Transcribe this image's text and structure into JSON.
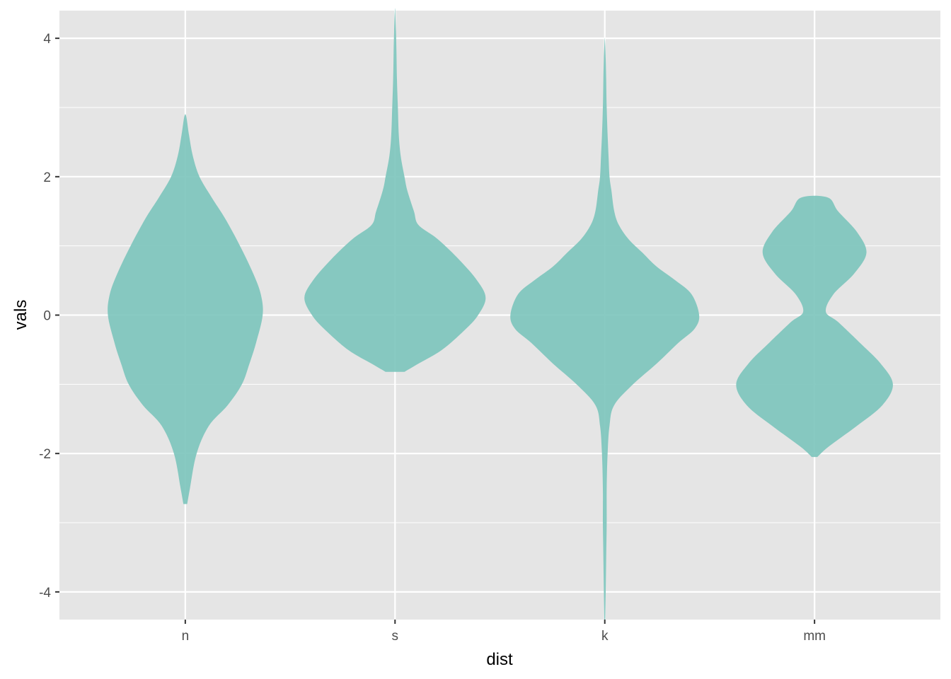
{
  "chart_data": {
    "type": "violin",
    "title": "",
    "xlabel": "dist",
    "ylabel": "vals",
    "categories": [
      "n",
      "s",
      "k",
      "mm"
    ],
    "ylim": [
      -4.4,
      4.4
    ],
    "yticks": [
      -4,
      -2,
      0,
      2,
      4
    ],
    "grid": true,
    "fill_color": "#7ec6bd",
    "panel_color": "#e5e5e5",
    "grid_color": "#ffffff",
    "violins": [
      {
        "category": "n",
        "y_range": [
          -2.73,
          2.87
        ],
        "profile": [
          [
            -2.73,
            0.02
          ],
          [
            -2.5,
            0.05
          ],
          [
            -2.0,
            0.12
          ],
          [
            -1.6,
            0.25
          ],
          [
            -1.3,
            0.45
          ],
          [
            -1.0,
            0.6
          ],
          [
            -0.7,
            0.68
          ],
          [
            -0.4,
            0.75
          ],
          [
            0.0,
            0.82
          ],
          [
            0.3,
            0.8
          ],
          [
            0.6,
            0.72
          ],
          [
            1.0,
            0.58
          ],
          [
            1.4,
            0.42
          ],
          [
            1.7,
            0.28
          ],
          [
            2.0,
            0.15
          ],
          [
            2.3,
            0.08
          ],
          [
            2.6,
            0.04
          ],
          [
            2.87,
            0.01
          ]
        ]
      },
      {
        "category": "s",
        "y_range": [
          -0.82,
          4.4
        ],
        "profile": [
          [
            -0.82,
            0.1
          ],
          [
            -0.7,
            0.25
          ],
          [
            -0.5,
            0.5
          ],
          [
            -0.2,
            0.75
          ],
          [
            0.0,
            0.88
          ],
          [
            0.25,
            0.96
          ],
          [
            0.5,
            0.87
          ],
          [
            0.8,
            0.68
          ],
          [
            1.1,
            0.45
          ],
          [
            1.3,
            0.25
          ],
          [
            1.5,
            0.2
          ],
          [
            1.8,
            0.13
          ],
          [
            2.0,
            0.1
          ],
          [
            2.3,
            0.06
          ],
          [
            2.6,
            0.04
          ],
          [
            3.0,
            0.03
          ],
          [
            3.4,
            0.02
          ],
          [
            3.8,
            0.015
          ],
          [
            4.1,
            0.01
          ],
          [
            4.4,
            0.002
          ]
        ]
      },
      {
        "category": "k",
        "y_range": [
          -4.4,
          3.97
        ],
        "profile": [
          [
            -4.4,
            0.005
          ],
          [
            -4.0,
            0.01
          ],
          [
            -3.5,
            0.015
          ],
          [
            -3.0,
            0.02
          ],
          [
            -2.5,
            0.02
          ],
          [
            -2.0,
            0.03
          ],
          [
            -1.6,
            0.05
          ],
          [
            -1.3,
            0.1
          ],
          [
            -1.0,
            0.3
          ],
          [
            -0.7,
            0.55
          ],
          [
            -0.4,
            0.78
          ],
          [
            -0.2,
            0.95
          ],
          [
            0.0,
            1.0
          ],
          [
            0.3,
            0.92
          ],
          [
            0.5,
            0.75
          ],
          [
            0.7,
            0.55
          ],
          [
            0.9,
            0.4
          ],
          [
            1.1,
            0.25
          ],
          [
            1.3,
            0.15
          ],
          [
            1.5,
            0.1
          ],
          [
            1.8,
            0.07
          ],
          [
            2.0,
            0.05
          ],
          [
            2.3,
            0.04
          ],
          [
            2.6,
            0.03
          ],
          [
            3.0,
            0.02
          ],
          [
            3.4,
            0.015
          ],
          [
            3.7,
            0.01
          ],
          [
            3.97,
            0.002
          ]
        ]
      },
      {
        "category": "mm",
        "y_range": [
          -2.05,
          1.7
        ],
        "profile": [
          [
            -2.05,
            0.03
          ],
          [
            -1.9,
            0.15
          ],
          [
            -1.6,
            0.45
          ],
          [
            -1.3,
            0.72
          ],
          [
            -1.0,
            0.83
          ],
          [
            -0.7,
            0.7
          ],
          [
            -0.4,
            0.48
          ],
          [
            -0.1,
            0.25
          ],
          [
            0.05,
            0.12
          ],
          [
            0.3,
            0.2
          ],
          [
            0.6,
            0.42
          ],
          [
            0.9,
            0.55
          ],
          [
            1.2,
            0.45
          ],
          [
            1.5,
            0.25
          ],
          [
            1.7,
            0.14
          ]
        ]
      }
    ]
  }
}
